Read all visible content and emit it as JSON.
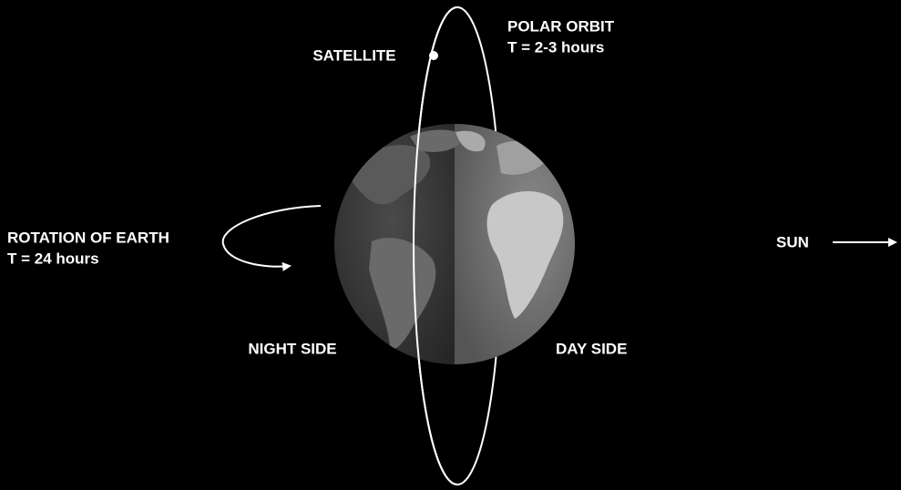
{
  "labels": {
    "satellite": "SATELLITE",
    "orbit_title": "POLAR ORBIT",
    "orbit_period": "T = 2-3 hours",
    "rotation_title": "ROTATION OF EARTH",
    "rotation_period": "T = 24 hours",
    "night_side": "NIGHT SIDE",
    "day_side": "DAY SIDE",
    "sun": "SUN"
  }
}
